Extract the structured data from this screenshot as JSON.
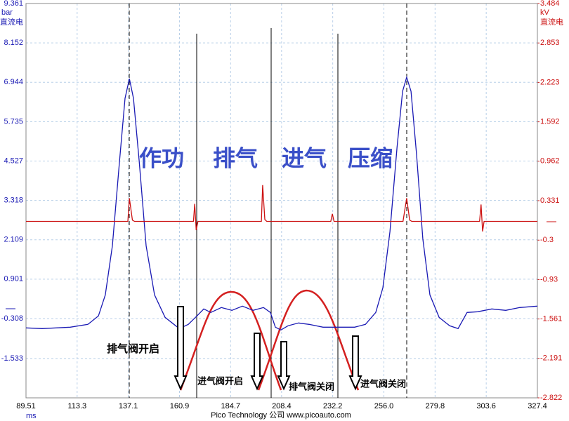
{
  "chart_data": {
    "type": "line",
    "left_unit": "bar",
    "left_unit_note": "直流电",
    "right_unit": "kV",
    "right_unit_note": "直流电",
    "x_unit": "ms",
    "footer": "Pico Technology 公司   www.picoauto.com",
    "xlim": [
      89.51,
      327.4
    ],
    "xticks": [
      89.51,
      113.3,
      137.1,
      160.9,
      184.7,
      208.4,
      232.2,
      {
        "value": 256,
        "label": "256.0"
      },
      279.8,
      303.6,
      327.4
    ],
    "ylim": [
      -2.742,
      9.361
    ],
    "yticks": [
      9.361,
      8.152,
      6.944,
      5.735,
      4.527,
      3.318,
      2.109,
      0.901,
      -0.308,
      -1.533
    ],
    "y2lim": [
      -2.822,
      3.484
    ],
    "y2ticks": [
      3.484,
      2.853,
      2.223,
      1.592,
      0.962,
      0.331,
      -0.3,
      -0.93,
      -1.561,
      -2.191,
      -2.822
    ],
    "grid": true,
    "series": [
      {
        "color": "#1a1ab4",
        "x": [
          89.51,
          97.0,
          110.1,
          118.3,
          123.2,
          126.4,
          129.7,
          133.0,
          135.6,
          137.6,
          139.5,
          142.2,
          145.4,
          149.3,
          154.2,
          160.8,
          165.0,
          169.0,
          172.2,
          175.5,
          180.4,
          185.3,
          190.2,
          195.1,
          200.0,
          203.2,
          205.5,
          208.1,
          211.4,
          216.3,
          221.2,
          227.7,
          234.3,
          242.4,
          247.4,
          252.2,
          255.5,
          258.8,
          262.1,
          264.7,
          266.6,
          268.6,
          271.2,
          274.1,
          277.4,
          281.7,
          286.6,
          290.5,
          294.7,
          299.6,
          306.2,
          312.7,
          319.2,
          327.4
        ],
        "values": [
          -0.595,
          -0.617,
          -0.574,
          -0.487,
          -0.229,
          0.418,
          1.926,
          4.512,
          6.452,
          7.055,
          6.452,
          4.512,
          1.926,
          0.418,
          -0.272,
          -0.617,
          -0.487,
          -0.229,
          -0.013,
          -0.121,
          0.03,
          -0.056,
          0.073,
          -0.056,
          0.03,
          -0.121,
          -0.574,
          -0.66,
          -0.53,
          -0.444,
          -0.487,
          -0.574,
          -0.574,
          -0.574,
          -0.487,
          -0.121,
          0.633,
          2.357,
          4.943,
          6.667,
          7.098,
          6.667,
          4.727,
          2.142,
          0.418,
          -0.272,
          -0.53,
          -0.617,
          -0.121,
          -0.099,
          -0.013,
          -0.056,
          0.03,
          0.073
        ]
      },
      {
        "color": "#cc1111",
        "axis": "y2",
        "x": [
          89.51,
          136.9,
          137.6,
          139.0,
          140.0,
          167.4,
          168.0,
          168.7,
          169.5,
          199.0,
          199.6,
          200.6,
          201.5,
          231.3,
          232.0,
          232.8,
          264.9,
          266.6,
          268.0,
          269.0,
          300.5,
          301.2,
          301.9,
          302.6,
          327.4
        ],
        "values": [
          0,
          0,
          0.37,
          0.02,
          0,
          0,
          0.28,
          -0.14,
          0,
          0,
          0.58,
          0.03,
          0,
          0,
          0.12,
          0,
          0,
          0.37,
          0.02,
          0,
          0,
          0.27,
          -0.16,
          0,
          0
        ]
      }
    ],
    "strokes": [
      "作功",
      "排气",
      "进气",
      "压缩"
    ],
    "valve_events": [
      "排气阀开启",
      "进气阀开启",
      "排气阀关闭",
      "进气阀关闭"
    ]
  }
}
